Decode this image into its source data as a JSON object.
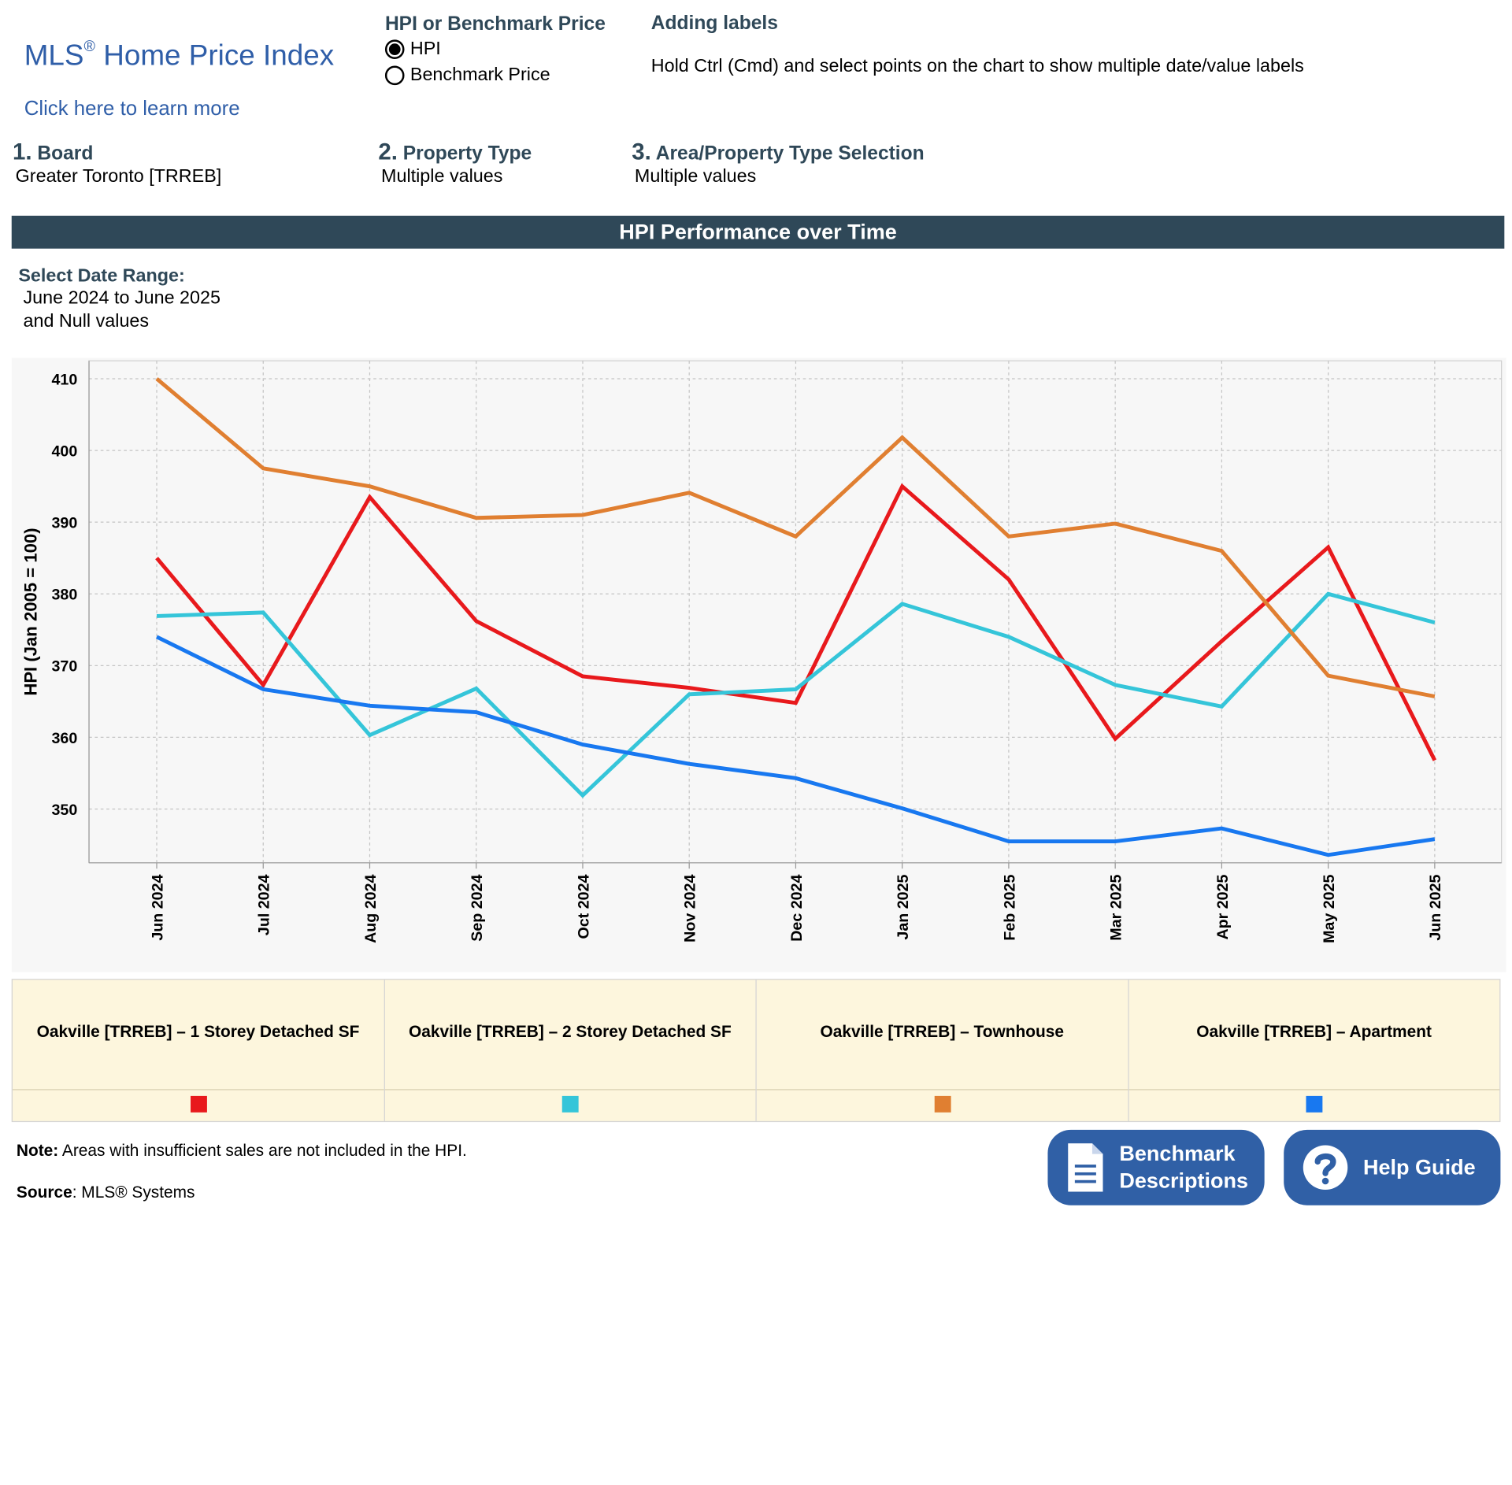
{
  "header": {
    "brand_title": "MLS",
    "brand_sup": "®",
    "brand_title_rest": " Home Price Index",
    "brand_link": "Click here to learn more",
    "toggle_title": "HPI or Benchmark Price",
    "toggle_options": [
      "HPI",
      "Benchmark Price"
    ],
    "toggle_selected": "HPI",
    "labels_title": "Adding labels",
    "labels_text": "Hold Ctrl (Cmd) and select points on the chart to show multiple date/value labels"
  },
  "filters": [
    {
      "num": "1.",
      "label": "Board",
      "value": "Greater Toronto [TRREB]"
    },
    {
      "num": "2.",
      "label": "Property Type",
      "value": "Multiple values"
    },
    {
      "num": "3.",
      "label": "Area/Property Type Selection",
      "value": "Multiple values"
    }
  ],
  "banner": "HPI Performance over Time",
  "date_range": {
    "title": "Select Date Range:",
    "line1": "June 2024 to June 2025",
    "line2": "and Null values"
  },
  "chart_data": {
    "type": "line",
    "title": "",
    "xlabel": "",
    "ylabel": "HPI (Jan 2005 = 100)",
    "ylim": [
      342.5,
      412.5
    ],
    "yticks": [
      350,
      360,
      370,
      380,
      390,
      400,
      410
    ],
    "grid": true,
    "categories": [
      "Jun 2024",
      "Jul 2024",
      "Aug 2024",
      "Sep 2024",
      "Oct 2024",
      "Nov 2024",
      "Dec 2024",
      "Jan 2025",
      "Feb 2025",
      "Mar 2025",
      "Apr 2025",
      "May 2025",
      "Jun 2025"
    ],
    "series": [
      {
        "name": "Oakville [TRREB] – 1 Storey Detached SF",
        "color": "#e8191c",
        "values": [
          385.0,
          367.3,
          393.5,
          376.2,
          368.5,
          366.9,
          364.8,
          395.0,
          382.0,
          359.8,
          373.4,
          386.5,
          356.8
        ]
      },
      {
        "name": "Oakville [TRREB] – 2 Storey Detached SF",
        "color": "#35c5d9",
        "values": [
          376.9,
          377.4,
          360.3,
          366.8,
          351.9,
          366.0,
          366.7,
          378.6,
          374.0,
          367.3,
          364.3,
          380.0,
          376.0
        ]
      },
      {
        "name": "Oakville [TRREB] – Townhouse",
        "color": "#e07f31",
        "values": [
          410.0,
          397.5,
          395.0,
          390.6,
          391.0,
          394.1,
          388.0,
          401.8,
          388.0,
          389.8,
          386.0,
          368.6,
          365.7
        ]
      },
      {
        "name": "Oakville [TRREB] – Apartment",
        "color": "#1878f0",
        "values": [
          374.0,
          366.7,
          364.4,
          363.5,
          359.0,
          356.3,
          354.3,
          350.1,
          345.5,
          345.5,
          347.3,
          343.6,
          345.8
        ]
      }
    ]
  },
  "legend_swatch_colors": [
    "#e8191c",
    "#35c5d9",
    "#e07f31",
    "#1878f0"
  ],
  "footer": {
    "note_label": "Note:",
    "note_text": " Areas with insufficient sales are not included in the HPI.",
    "source_label": "Source",
    "source_text": ": MLS® Systems"
  },
  "buttons": {
    "benchmark_line1": "Benchmark",
    "benchmark_line2": "Descriptions",
    "benchmark_icon": "document-icon",
    "help_label": "Help Guide",
    "help_icon": "question-circle-icon"
  }
}
